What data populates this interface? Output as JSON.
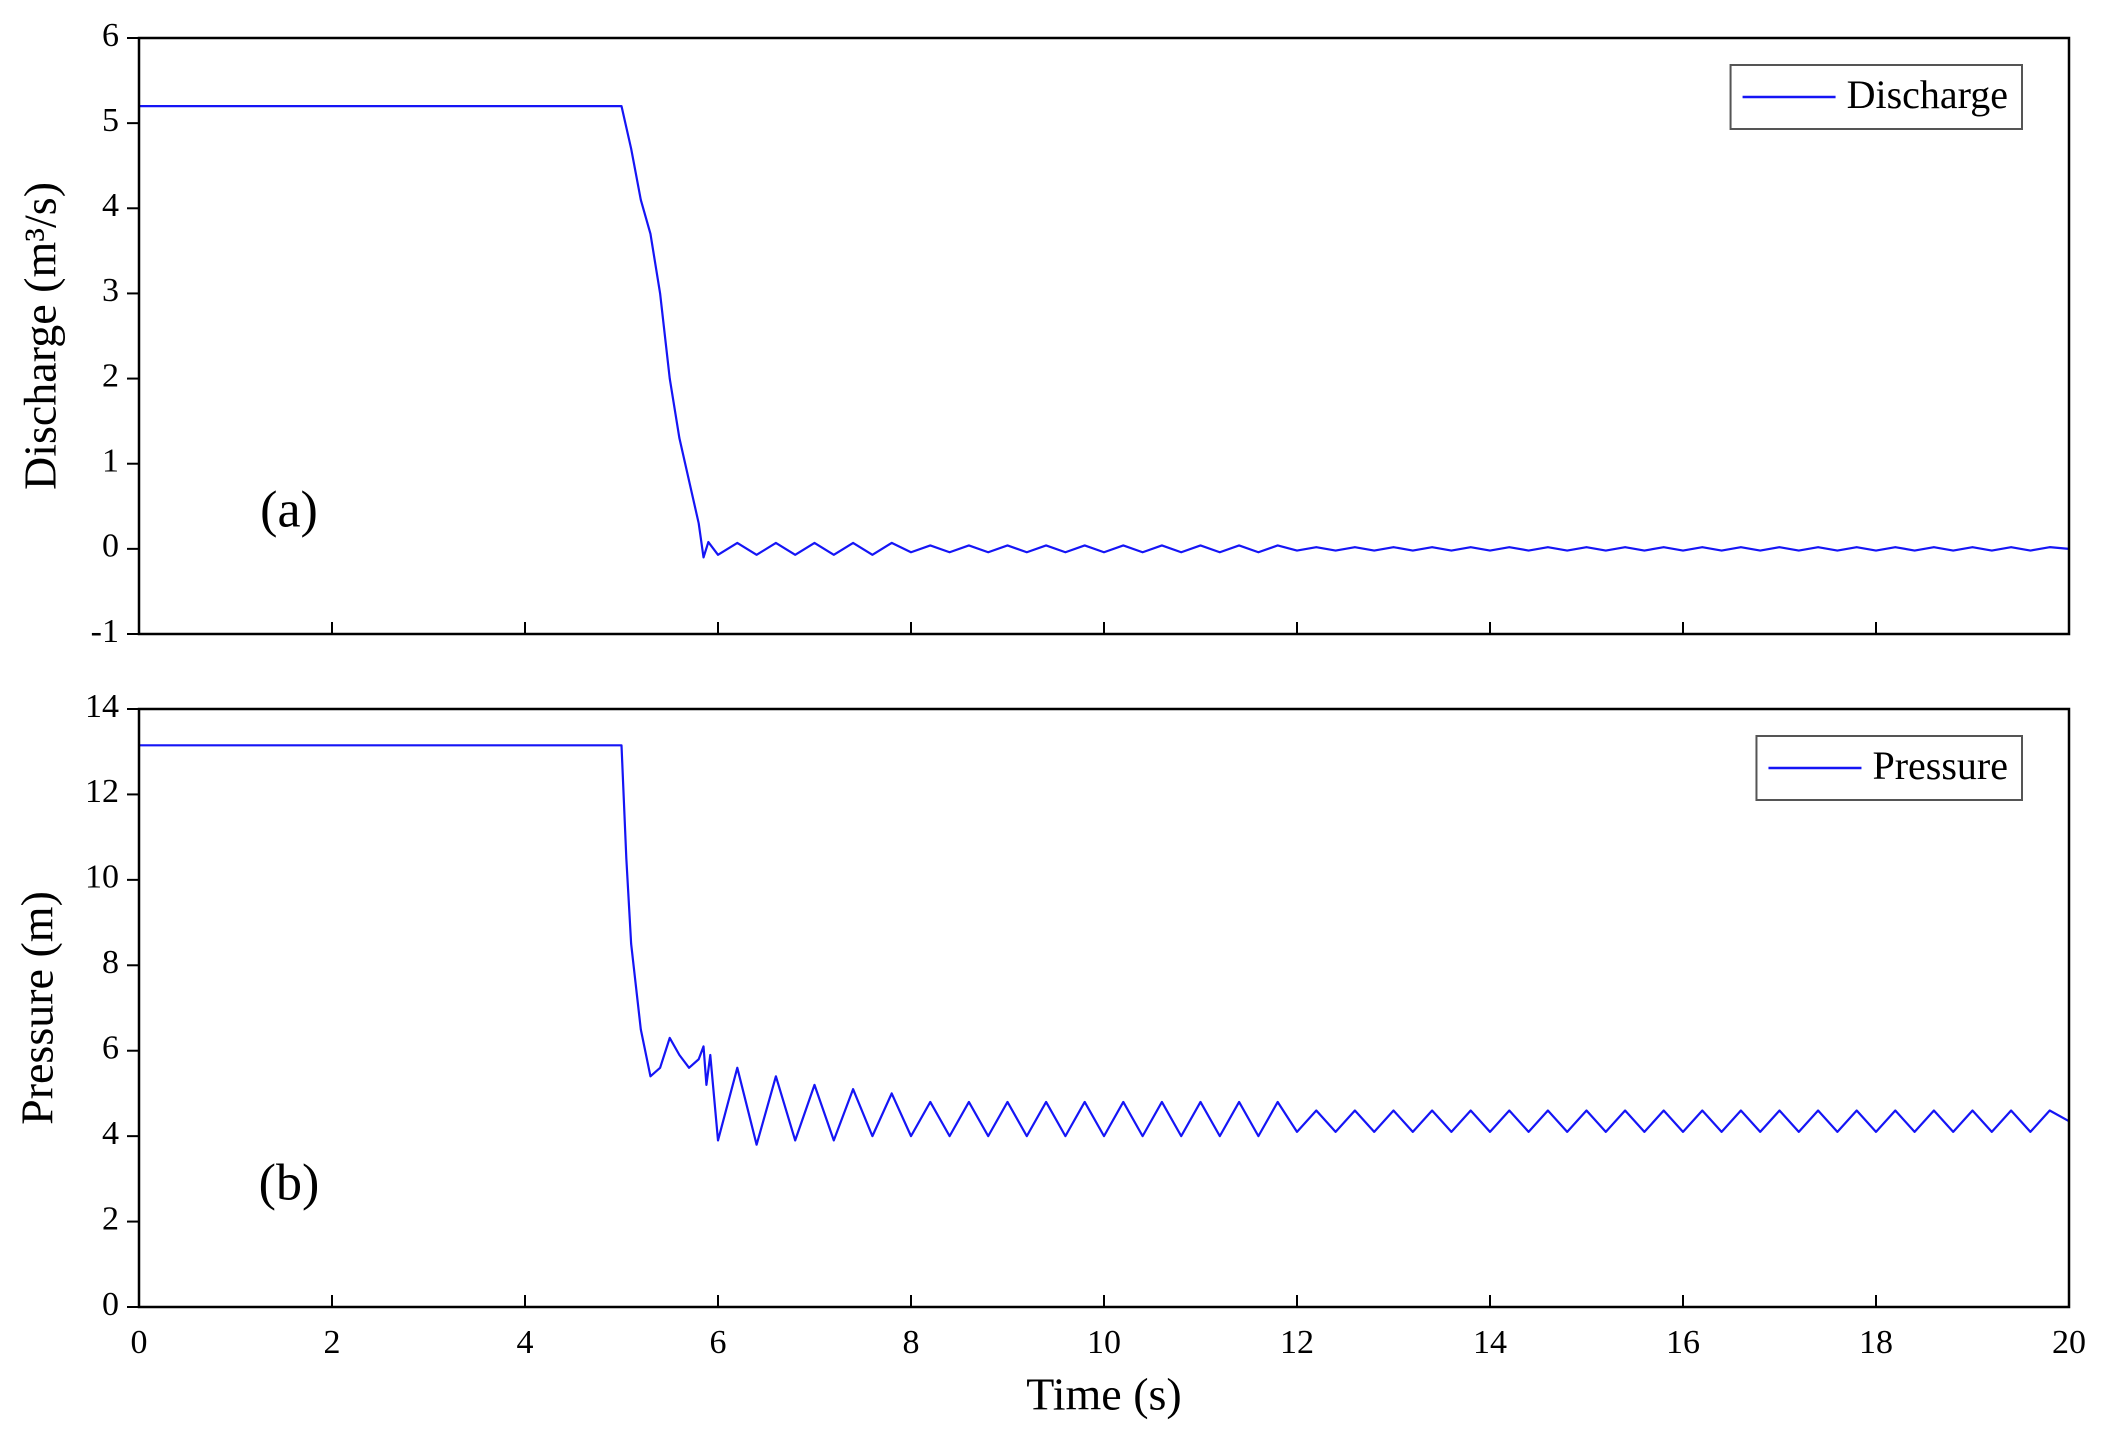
{
  "chart_data": [
    {
      "type": "line",
      "annotation": "(a)",
      "y_label": "Discharge (m³/s)",
      "xlim": [
        0,
        20
      ],
      "xticks": [
        0,
        2,
        4,
        6,
        8,
        10,
        12,
        14,
        16,
        18,
        20
      ],
      "show_xtick_labels": false,
      "ylim": [
        -1,
        6
      ],
      "yticks": [
        -1,
        0,
        1,
        2,
        3,
        4,
        5,
        6
      ],
      "legend": "upper right",
      "x": [
        0,
        5.0,
        5.1,
        5.2,
        5.3,
        5.4,
        5.5,
        5.6,
        5.7,
        5.8,
        5.85,
        5.9,
        6,
        6.2,
        6.4,
        6.6,
        6.8,
        7,
        7.2,
        7.4,
        7.6,
        7.8,
        8,
        8.2,
        8.4,
        8.6,
        8.8,
        9,
        9.2,
        9.4,
        9.6,
        9.8,
        10,
        10.2,
        10.4,
        10.6,
        10.8,
        11,
        11.2,
        11.4,
        11.6,
        11.8,
        12,
        12.2,
        12.4,
        12.6,
        12.8,
        13,
        13.2,
        13.4,
        13.6,
        13.8,
        14,
        14.2,
        14.4,
        14.6,
        14.8,
        15,
        15.2,
        15.4,
        15.6,
        15.8,
        16,
        16.2,
        16.4,
        16.6,
        16.8,
        17,
        17.2,
        17.4,
        17.6,
        17.8,
        18,
        18.2,
        18.4,
        18.6,
        18.8,
        19,
        19.2,
        19.4,
        19.6,
        19.8,
        20
      ],
      "series": [
        {
          "name": "Discharge",
          "color": "#1515f5",
          "values": [
            5.2,
            5.2,
            4.7,
            4.1,
            3.7,
            3.0,
            2.0,
            1.3,
            0.8,
            0.3,
            -0.1,
            0.08,
            -0.07,
            0.07,
            -0.07,
            0.07,
            -0.07,
            0.07,
            -0.07,
            0.07,
            -0.07,
            0.07,
            -0.04,
            0.04,
            -0.04,
            0.04,
            -0.04,
            0.04,
            -0.04,
            0.04,
            -0.04,
            0.04,
            -0.04,
            0.04,
            -0.04,
            0.04,
            -0.04,
            0.04,
            -0.04,
            0.04,
            -0.04,
            0.04,
            -0.02,
            0.02,
            -0.02,
            0.02,
            -0.02,
            0.02,
            -0.02,
            0.02,
            -0.02,
            0.02,
            -0.02,
            0.02,
            -0.02,
            0.02,
            -0.02,
            0.02,
            -0.02,
            0.02,
            -0.02,
            0.02,
            -0.02,
            0.02,
            -0.02,
            0.02,
            -0.02,
            0.02,
            -0.02,
            0.02,
            -0.02,
            0.02,
            -0.02,
            0.02,
            -0.02,
            0.02,
            -0.02,
            0.02,
            -0.02,
            0.02,
            -0.02,
            0.02,
            0
          ]
        }
      ]
    },
    {
      "type": "line",
      "annotation": "(b)",
      "y_label": "Pressure (m)",
      "x_label": "Time (s)",
      "xlim": [
        0,
        20
      ],
      "xticks": [
        0,
        2,
        4,
        6,
        8,
        10,
        12,
        14,
        16,
        18,
        20
      ],
      "show_xtick_labels": true,
      "ylim": [
        0,
        14
      ],
      "yticks": [
        0,
        2,
        4,
        6,
        8,
        10,
        12,
        14
      ],
      "legend": "upper right",
      "x": [
        0,
        5.0,
        5.05,
        5.1,
        5.2,
        5.3,
        5.4,
        5.5,
        5.6,
        5.7,
        5.8,
        5.85,
        5.88,
        5.92,
        6,
        6.2,
        6.4,
        6.6,
        6.8,
        7,
        7.2,
        7.4,
        7.6,
        7.8,
        8,
        8.2,
        8.4,
        8.6,
        8.8,
        9,
        9.2,
        9.4,
        9.6,
        9.8,
        10,
        10.2,
        10.4,
        10.6,
        10.8,
        11,
        11.2,
        11.4,
        11.6,
        11.8,
        12,
        12.2,
        12.4,
        12.6,
        12.8,
        13,
        13.2,
        13.4,
        13.6,
        13.8,
        14,
        14.2,
        14.4,
        14.6,
        14.8,
        15,
        15.2,
        15.4,
        15.6,
        15.8,
        16,
        16.2,
        16.4,
        16.6,
        16.8,
        17,
        17.2,
        17.4,
        17.6,
        17.8,
        18,
        18.2,
        18.4,
        18.6,
        18.8,
        19,
        19.2,
        19.4,
        19.6,
        19.8,
        20
      ],
      "series": [
        {
          "name": "Pressure",
          "color": "#1515f5",
          "values": [
            13.15,
            13.15,
            10.5,
            8.5,
            6.5,
            5.4,
            5.6,
            6.3,
            5.9,
            5.6,
            5.8,
            6.1,
            5.2,
            5.9,
            3.9,
            5.6,
            3.8,
            5.4,
            3.9,
            5.2,
            3.9,
            5.1,
            4.0,
            5.0,
            4.0,
            4.8,
            4.0,
            4.8,
            4.0,
            4.8,
            4.0,
            4.8,
            4.0,
            4.8,
            4.0,
            4.8,
            4.0,
            4.8,
            4.0,
            4.8,
            4.0,
            4.8,
            4.0,
            4.8,
            4.1,
            4.6,
            4.1,
            4.6,
            4.1,
            4.6,
            4.1,
            4.6,
            4.1,
            4.6,
            4.1,
            4.6,
            4.1,
            4.6,
            4.1,
            4.6,
            4.1,
            4.6,
            4.1,
            4.6,
            4.1,
            4.6,
            4.1,
            4.6,
            4.1,
            4.6,
            4.1,
            4.6,
            4.1,
            4.6,
            4.1,
            4.6,
            4.1,
            4.6,
            4.1,
            4.6,
            4.1,
            4.6,
            4.1,
            4.6,
            4.35
          ]
        }
      ]
    }
  ]
}
